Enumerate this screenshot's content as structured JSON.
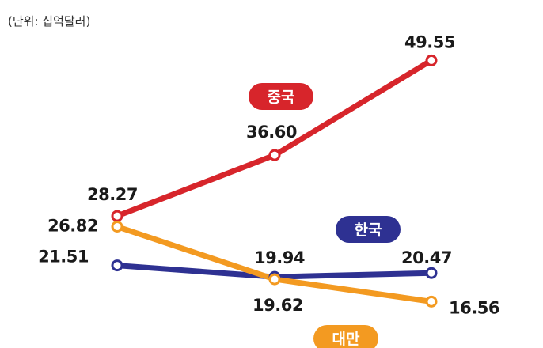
{
  "chart_data": {
    "type": "line",
    "unit_note": "(단위: 십억달러)",
    "x": [
      0,
      1,
      2
    ],
    "ylim": [
      10,
      55
    ],
    "grid": false,
    "series": [
      {
        "name": "중국",
        "color": "#d7252b",
        "values": [
          28.27,
          36.6,
          49.55
        ],
        "labels": [
          "28.27",
          "36.60",
          "49.55"
        ]
      },
      {
        "name": "한국",
        "color": "#2e3192",
        "values": [
          21.51,
          19.94,
          20.47
        ],
        "labels": [
          "21.51",
          "19.94",
          "20.47"
        ]
      },
      {
        "name": "대만",
        "color": "#f39a21",
        "values": [
          26.82,
          19.62,
          16.56
        ],
        "labels": [
          "26.82",
          "19.62",
          "16.56"
        ]
      }
    ]
  }
}
